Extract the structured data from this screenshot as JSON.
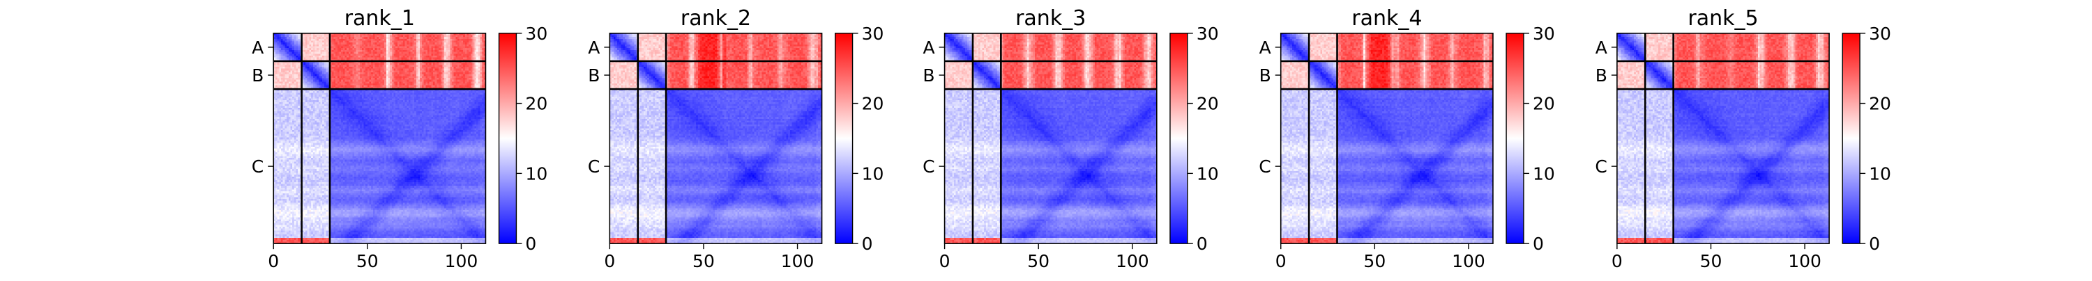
{
  "chart_data": [
    {
      "type": "heatmap",
      "title": "rank_1",
      "xlim": [
        0,
        113
      ],
      "ylim": [
        0,
        113
      ],
      "xticks": [
        0,
        50,
        100
      ],
      "chains": [
        "A",
        "B",
        "C"
      ],
      "chain_boundaries": [
        15,
        30
      ],
      "colorbar": {
        "min": 0,
        "max": 30,
        "ticks": [
          0,
          10,
          20,
          30
        ],
        "colors": [
          "#0000ff",
          "#ffffff",
          "#ff0000"
        ]
      }
    },
    {
      "type": "heatmap",
      "title": "rank_2",
      "xlim": [
        0,
        113
      ],
      "ylim": [
        0,
        113
      ],
      "xticks": [
        0,
        50,
        100
      ],
      "chains": [
        "A",
        "B",
        "C"
      ],
      "chain_boundaries": [
        15,
        30
      ],
      "colorbar": {
        "min": 0,
        "max": 30,
        "ticks": [
          0,
          10,
          20,
          30
        ],
        "colors": [
          "#0000ff",
          "#ffffff",
          "#ff0000"
        ]
      }
    },
    {
      "type": "heatmap",
      "title": "rank_3",
      "xlim": [
        0,
        113
      ],
      "ylim": [
        0,
        113
      ],
      "xticks": [
        0,
        50,
        100
      ],
      "chains": [
        "A",
        "B",
        "C"
      ],
      "chain_boundaries": [
        15,
        30
      ],
      "colorbar": {
        "min": 0,
        "max": 30,
        "ticks": [
          0,
          10,
          20,
          30
        ],
        "colors": [
          "#0000ff",
          "#ffffff",
          "#ff0000"
        ]
      }
    },
    {
      "type": "heatmap",
      "title": "rank_4",
      "xlim": [
        0,
        113
      ],
      "ylim": [
        0,
        113
      ],
      "xticks": [
        0,
        50,
        100
      ],
      "chains": [
        "A",
        "B",
        "C"
      ],
      "chain_boundaries": [
        15,
        30
      ],
      "colorbar": {
        "min": 0,
        "max": 30,
        "ticks": [
          0,
          10,
          20,
          30
        ],
        "colors": [
          "#0000ff",
          "#ffffff",
          "#ff0000"
        ]
      }
    },
    {
      "type": "heatmap",
      "title": "rank_5",
      "xlim": [
        0,
        113
      ],
      "ylim": [
        0,
        113
      ],
      "xticks": [
        0,
        50,
        100
      ],
      "chains": [
        "A",
        "B",
        "C"
      ],
      "chain_boundaries": [
        15,
        30
      ],
      "colorbar": {
        "min": 0,
        "max": 30,
        "ticks": [
          0,
          10,
          20,
          30
        ],
        "colors": [
          "#0000ff",
          "#ffffff",
          "#ff0000"
        ]
      }
    }
  ]
}
